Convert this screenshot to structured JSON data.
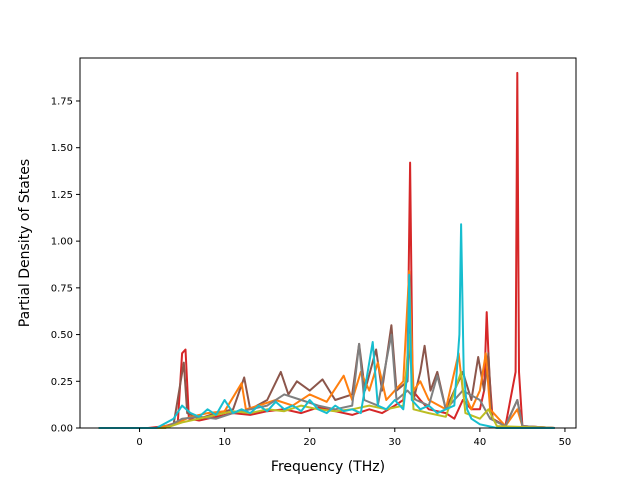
{
  "chart_data": {
    "type": "line",
    "title": "",
    "xlabel": "Frequency (THz)",
    "ylabel": "Partial Density of States",
    "xlim": [
      -7.0,
      51.3
    ],
    "ylim": [
      0.0,
      1.98
    ],
    "xticks": [
      0,
      10,
      20,
      30,
      40,
      50
    ],
    "xtick_labels": [
      "0",
      "10",
      "20",
      "30",
      "40",
      "50"
    ],
    "yticks": [
      0.0,
      0.25,
      0.5,
      0.75,
      1.0,
      1.25,
      1.5,
      1.75
    ],
    "ytick_labels": [
      "0.00",
      "0.25",
      "0.50",
      "0.75",
      "1.00",
      "1.25",
      "1.50",
      "1.75"
    ],
    "grid": false,
    "legend": "none",
    "series": [
      {
        "color": "#d62728",
        "points": [
          [
            -4.8,
            0
          ],
          [
            1,
            0
          ],
          [
            3,
            0.01
          ],
          [
            4.5,
            0.03
          ],
          [
            5,
            0.4
          ],
          [
            5.4,
            0.42
          ],
          [
            5.8,
            0.05
          ],
          [
            7,
            0.04
          ],
          [
            9,
            0.06
          ],
          [
            11,
            0.08
          ],
          [
            13,
            0.07
          ],
          [
            15,
            0.09
          ],
          [
            17,
            0.1
          ],
          [
            19,
            0.08
          ],
          [
            21,
            0.11
          ],
          [
            23,
            0.09
          ],
          [
            25,
            0.07
          ],
          [
            27,
            0.1
          ],
          [
            28.5,
            0.08
          ],
          [
            30,
            0.12
          ],
          [
            31,
            0.15
          ],
          [
            31.5,
            0.35
          ],
          [
            31.8,
            1.42
          ],
          [
            32.1,
            0.2
          ],
          [
            33,
            0.15
          ],
          [
            34,
            0.1
          ],
          [
            36,
            0.08
          ],
          [
            37,
            0.05
          ],
          [
            38,
            0.15
          ],
          [
            39,
            0.1
          ],
          [
            40,
            0.1
          ],
          [
            40.5,
            0.2
          ],
          [
            40.8,
            0.62
          ],
          [
            41.1,
            0.3
          ],
          [
            41.5,
            0.05
          ],
          [
            43,
            0.01
          ],
          [
            44.2,
            0.3
          ],
          [
            44.4,
            1.9
          ],
          [
            44.6,
            0.3
          ],
          [
            45,
            0.01
          ],
          [
            48.8,
            0
          ]
        ]
      },
      {
        "color": "#8c564b",
        "points": [
          [
            -4.8,
            0
          ],
          [
            2,
            0
          ],
          [
            4,
            0.02
          ],
          [
            5.2,
            0.35
          ],
          [
            5.6,
            0.08
          ],
          [
            7,
            0.05
          ],
          [
            9,
            0.08
          ],
          [
            11,
            0.1
          ],
          [
            12.3,
            0.27
          ],
          [
            13,
            0.1
          ],
          [
            15,
            0.15
          ],
          [
            16.6,
            0.3
          ],
          [
            17.5,
            0.18
          ],
          [
            18.5,
            0.25
          ],
          [
            20,
            0.2
          ],
          [
            21.5,
            0.26
          ],
          [
            23,
            0.15
          ],
          [
            25,
            0.18
          ],
          [
            25.8,
            0.45
          ],
          [
            26.5,
            0.2
          ],
          [
            27.8,
            0.42
          ],
          [
            28.5,
            0.2
          ],
          [
            29.6,
            0.55
          ],
          [
            30.2,
            0.2
          ],
          [
            31.5,
            0.25
          ],
          [
            31.8,
            0.6
          ],
          [
            32.2,
            0.15
          ],
          [
            33,
            0.3
          ],
          [
            33.5,
            0.44
          ],
          [
            34.2,
            0.2
          ],
          [
            35,
            0.3
          ],
          [
            36,
            0.1
          ],
          [
            38,
            0.3
          ],
          [
            39,
            0.15
          ],
          [
            39.8,
            0.38
          ],
          [
            40.5,
            0.2
          ],
          [
            41,
            0.4
          ],
          [
            41.4,
            0.05
          ],
          [
            43,
            0.01
          ],
          [
            44.4,
            0.15
          ],
          [
            45,
            0.01
          ],
          [
            48.8,
            0
          ]
        ]
      },
      {
        "color": "#ff7f0e",
        "points": [
          [
            -4.8,
            0
          ],
          [
            2,
            0
          ],
          [
            4,
            0.02
          ],
          [
            6,
            0.06
          ],
          [
            8,
            0.08
          ],
          [
            10,
            0.09
          ],
          [
            12,
            0.24
          ],
          [
            12.5,
            0.1
          ],
          [
            14,
            0.12
          ],
          [
            16,
            0.15
          ],
          [
            18,
            0.12
          ],
          [
            20,
            0.18
          ],
          [
            22,
            0.14
          ],
          [
            24,
            0.28
          ],
          [
            25,
            0.15
          ],
          [
            26,
            0.3
          ],
          [
            27,
            0.2
          ],
          [
            28,
            0.35
          ],
          [
            29,
            0.15
          ],
          [
            30,
            0.2
          ],
          [
            31,
            0.25
          ],
          [
            31.7,
            0.84
          ],
          [
            32.2,
            0.2
          ],
          [
            33,
            0.25
          ],
          [
            34,
            0.15
          ],
          [
            36,
            0.1
          ],
          [
            37.5,
            0.4
          ],
          [
            38,
            0.2
          ],
          [
            39,
            0.1
          ],
          [
            40,
            0.2
          ],
          [
            40.7,
            0.4
          ],
          [
            41.2,
            0.1
          ],
          [
            43,
            0.01
          ],
          [
            44.4,
            0.1
          ],
          [
            45,
            0.01
          ],
          [
            48.8,
            0
          ]
        ]
      },
      {
        "color": "#7f7f7f",
        "points": [
          [
            -4.8,
            0
          ],
          [
            3,
            0
          ],
          [
            5,
            0.05
          ],
          [
            7,
            0.06
          ],
          [
            9,
            0.05
          ],
          [
            11,
            0.08
          ],
          [
            13,
            0.1
          ],
          [
            15,
            0.12
          ],
          [
            17,
            0.18
          ],
          [
            19,
            0.15
          ],
          [
            21,
            0.12
          ],
          [
            23,
            0.1
          ],
          [
            25,
            0.12
          ],
          [
            25.8,
            0.45
          ],
          [
            26.4,
            0.15
          ],
          [
            28,
            0.12
          ],
          [
            29.6,
            0.5
          ],
          [
            30.2,
            0.15
          ],
          [
            31.5,
            0.2
          ],
          [
            32.5,
            0.15
          ],
          [
            34,
            0.12
          ],
          [
            35,
            0.28
          ],
          [
            36,
            0.1
          ],
          [
            38,
            0.2
          ],
          [
            40,
            0.15
          ],
          [
            41.2,
            0.05
          ],
          [
            43,
            0.01
          ],
          [
            44.4,
            0.15
          ],
          [
            45,
            0.01
          ],
          [
            48.8,
            0
          ]
        ]
      },
      {
        "color": "#bcbd22",
        "points": [
          [
            -4.8,
            0
          ],
          [
            3,
            0
          ],
          [
            5,
            0.03
          ],
          [
            7,
            0.05
          ],
          [
            9,
            0.07
          ],
          [
            11,
            0.09
          ],
          [
            13,
            0.08
          ],
          [
            15,
            0.1
          ],
          [
            17,
            0.09
          ],
          [
            19,
            0.12
          ],
          [
            21,
            0.1
          ],
          [
            23,
            0.09
          ],
          [
            25,
            0.1
          ],
          [
            27,
            0.12
          ],
          [
            29,
            0.1
          ],
          [
            31,
            0.12
          ],
          [
            31.7,
            0.5
          ],
          [
            32.2,
            0.1
          ],
          [
            34,
            0.08
          ],
          [
            36,
            0.06
          ],
          [
            37.8,
            0.3
          ],
          [
            38.3,
            0.08
          ],
          [
            40,
            0.05
          ],
          [
            41,
            0.1
          ],
          [
            42,
            0.01
          ],
          [
            48.8,
            0
          ]
        ]
      },
      {
        "color": "#17becf",
        "points": [
          [
            -4.8,
            0
          ],
          [
            2,
            0
          ],
          [
            4,
            0.05
          ],
          [
            5,
            0.12
          ],
          [
            6,
            0.08
          ],
          [
            7,
            0.06
          ],
          [
            8,
            0.1
          ],
          [
            9,
            0.07
          ],
          [
            10,
            0.15
          ],
          [
            11,
            0.08
          ],
          [
            12,
            0.1
          ],
          [
            13,
            0.08
          ],
          [
            14,
            0.12
          ],
          [
            15,
            0.09
          ],
          [
            16,
            0.14
          ],
          [
            17,
            0.1
          ],
          [
            18,
            0.12
          ],
          [
            19,
            0.09
          ],
          [
            20,
            0.15
          ],
          [
            21,
            0.1
          ],
          [
            22,
            0.08
          ],
          [
            23,
            0.12
          ],
          [
            24,
            0.09
          ],
          [
            25,
            0.1
          ],
          [
            26,
            0.08
          ],
          [
            27.4,
            0.46
          ],
          [
            28,
            0.12
          ],
          [
            29,
            0.1
          ],
          [
            30,
            0.15
          ],
          [
            31,
            0.1
          ],
          [
            31.5,
            0.3
          ],
          [
            31.7,
            0.82
          ],
          [
            32,
            0.15
          ],
          [
            33,
            0.1
          ],
          [
            34,
            0.12
          ],
          [
            35,
            0.08
          ],
          [
            36,
            0.1
          ],
          [
            37,
            0.12
          ],
          [
            37.6,
            0.5
          ],
          [
            37.8,
            1.09
          ],
          [
            38.1,
            0.3
          ],
          [
            38.5,
            0.1
          ],
          [
            39,
            0.05
          ],
          [
            40,
            0.02
          ],
          [
            41,
            0.01
          ],
          [
            42,
            0
          ],
          [
            48.8,
            0
          ]
        ]
      }
    ]
  }
}
